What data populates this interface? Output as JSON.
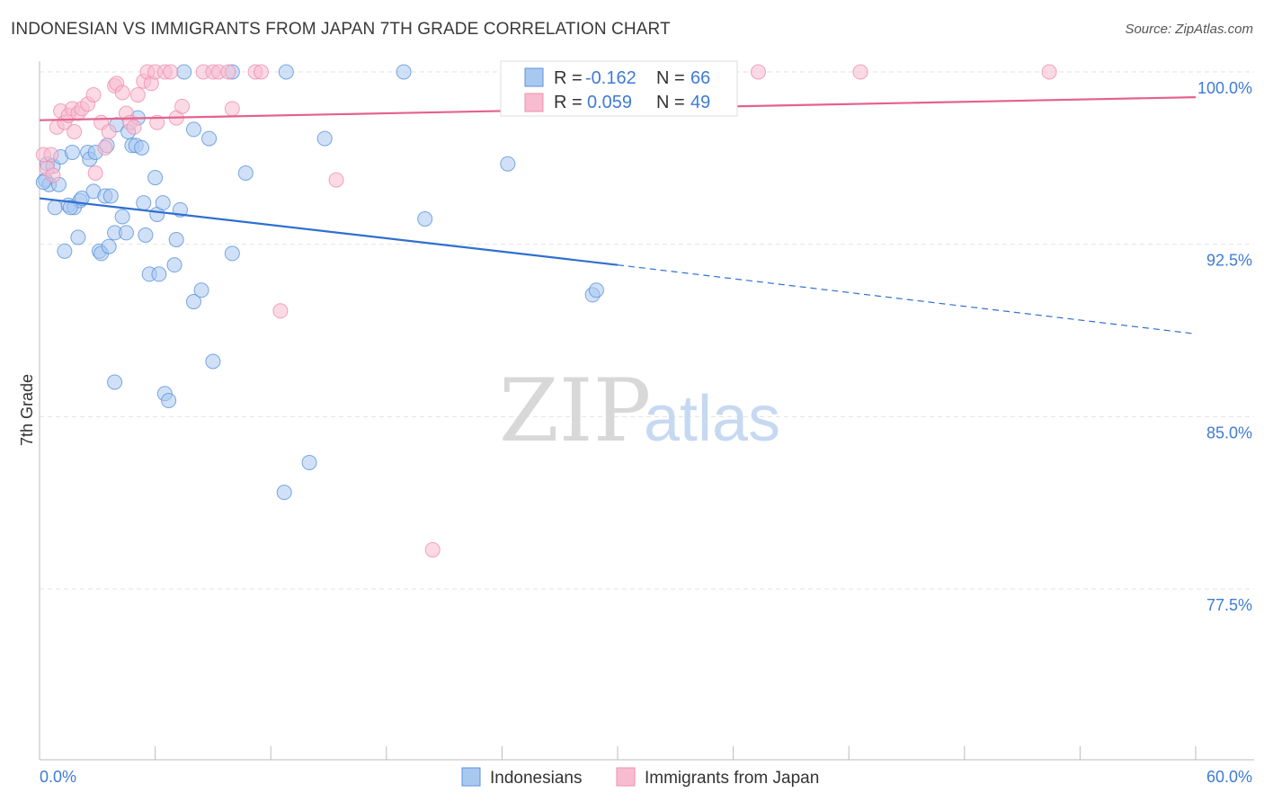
{
  "header": {
    "title": "INDONESIAN VS IMMIGRANTS FROM JAPAN 7TH GRADE CORRELATION CHART",
    "source": "Source: ZipAtlas.com"
  },
  "watermark": {
    "zip": "ZIP",
    "atlas": "atlas"
  },
  "legend": {
    "rows": [
      {
        "r_label": "R =",
        "r_value": "-0.162",
        "n_label": "N =",
        "n_value": "66",
        "color": "#a9c8f0"
      },
      {
        "r_label": "R =",
        "r_value": "0.059",
        "n_label": "N =",
        "n_value": "49",
        "color": "#f8bcd0"
      }
    ]
  },
  "colors": {
    "blue_fill": "#a9c8f0",
    "blue_stroke": "#5b92dc",
    "blue_line": "#2f6fd0",
    "pink_fill": "#f8bcd0",
    "pink_stroke": "#ee8fb0",
    "pink_line": "#e4628f",
    "tick_text": "#3f7bd6",
    "grid": "#e3e3e3"
  },
  "chart_data": {
    "type": "scatter",
    "title": "INDONESIAN VS IMMIGRANTS FROM JAPAN 7TH GRADE CORRELATION CHART",
    "xlabel": "",
    "ylabel": "7th Grade",
    "xlim": [
      0,
      60
    ],
    "ylim": [
      70,
      100.8
    ],
    "x_tick_labels": [
      {
        "value": 0,
        "label": "0.0%"
      },
      {
        "value": 60,
        "label": "60.0%"
      }
    ],
    "y_tick_labels": [
      {
        "value": 100,
        "label": "100.0%"
      },
      {
        "value": 92.5,
        "label": "92.5%"
      },
      {
        "value": 85,
        "label": "85.0%"
      },
      {
        "value": 77.5,
        "label": "77.5%"
      }
    ],
    "grid": true,
    "legend_position": "top-center",
    "series": [
      {
        "name": "Indonesians",
        "color": "#a9c8f0",
        "trend": {
          "x0": 0,
          "y0": 94.5,
          "x1": 30,
          "y1": 91.6,
          "dashed_to_x": 60,
          "dashed_to_y": 88.6
        },
        "points": [
          [
            0.3,
            95.3
          ],
          [
            0.4,
            96.0
          ],
          [
            0.5,
            95.1
          ],
          [
            0.7,
            95.9
          ],
          [
            0.8,
            94.1
          ],
          [
            1.0,
            95.1
          ],
          [
            1.1,
            96.3
          ],
          [
            1.3,
            92.2
          ],
          [
            1.5,
            94.2
          ],
          [
            1.7,
            96.5
          ],
          [
            1.8,
            94.1
          ],
          [
            2.0,
            92.8
          ],
          [
            2.1,
            94.4
          ],
          [
            2.2,
            94.5
          ],
          [
            2.5,
            96.5
          ],
          [
            2.6,
            96.2
          ],
          [
            2.8,
            94.8
          ],
          [
            2.9,
            96.5
          ],
          [
            3.1,
            92.2
          ],
          [
            3.2,
            92.1
          ],
          [
            3.4,
            94.6
          ],
          [
            3.5,
            96.8
          ],
          [
            3.6,
            92.4
          ],
          [
            3.7,
            94.6
          ],
          [
            3.9,
            93.0
          ],
          [
            4.0,
            97.7
          ],
          [
            4.3,
            93.7
          ],
          [
            4.5,
            93.0
          ],
          [
            4.6,
            97.4
          ],
          [
            4.8,
            96.8
          ],
          [
            5.0,
            96.8
          ],
          [
            5.1,
            98.0
          ],
          [
            5.3,
            96.7
          ],
          [
            5.4,
            94.3
          ],
          [
            5.5,
            92.9
          ],
          [
            5.7,
            91.2
          ],
          [
            6.0,
            95.4
          ],
          [
            6.1,
            93.8
          ],
          [
            6.2,
            91.2
          ],
          [
            6.4,
            94.3
          ],
          [
            6.5,
            86.0
          ],
          [
            6.7,
            85.7
          ],
          [
            7.1,
            92.7
          ],
          [
            7.0,
            91.6
          ],
          [
            7.3,
            94.0
          ],
          [
            7.5,
            100.0
          ],
          [
            8.0,
            97.5
          ],
          [
            8.0,
            90.0
          ],
          [
            8.4,
            90.5
          ],
          [
            8.8,
            97.1
          ],
          [
            9.0,
            87.4
          ],
          [
            10.0,
            100.0
          ],
          [
            10.0,
            92.1
          ],
          [
            10.7,
            95.6
          ],
          [
            3.9,
            86.5
          ],
          [
            12.7,
            81.7
          ],
          [
            12.8,
            100.0
          ],
          [
            14.0,
            83.0
          ],
          [
            14.8,
            97.1
          ],
          [
            18.9,
            100.0
          ],
          [
            20.0,
            93.6
          ],
          [
            24.3,
            96.0
          ],
          [
            28.7,
            90.3
          ],
          [
            28.9,
            90.5
          ],
          [
            0.2,
            95.2
          ],
          [
            1.6,
            94.1
          ]
        ]
      },
      {
        "name": "Immigrants from Japan",
        "color": "#f8bcd0",
        "trend": {
          "x0": 0,
          "y0": 97.9,
          "x1": 60,
          "y1": 98.9
        },
        "points": [
          [
            0.2,
            96.4
          ],
          [
            0.4,
            95.8
          ],
          [
            0.6,
            96.4
          ],
          [
            0.7,
            95.5
          ],
          [
            0.9,
            97.6
          ],
          [
            1.1,
            98.3
          ],
          [
            1.3,
            97.8
          ],
          [
            1.5,
            98.1
          ],
          [
            1.7,
            98.4
          ],
          [
            1.8,
            97.4
          ],
          [
            2.0,
            98.2
          ],
          [
            2.2,
            98.4
          ],
          [
            2.5,
            98.6
          ],
          [
            2.8,
            99.0
          ],
          [
            2.9,
            95.6
          ],
          [
            3.2,
            97.8
          ],
          [
            3.4,
            96.7
          ],
          [
            3.6,
            97.4
          ],
          [
            3.9,
            99.4
          ],
          [
            4.0,
            99.5
          ],
          [
            4.3,
            99.1
          ],
          [
            4.5,
            98.2
          ],
          [
            4.7,
            97.8
          ],
          [
            4.9,
            97.6
          ],
          [
            5.1,
            99.0
          ],
          [
            5.4,
            99.6
          ],
          [
            5.6,
            100.0
          ],
          [
            5.8,
            99.5
          ],
          [
            6.0,
            100.0
          ],
          [
            6.1,
            97.8
          ],
          [
            6.5,
            100.0
          ],
          [
            6.8,
            100.0
          ],
          [
            7.1,
            98.0
          ],
          [
            7.4,
            98.5
          ],
          [
            8.5,
            100.0
          ],
          [
            9.0,
            100.0
          ],
          [
            9.3,
            100.0
          ],
          [
            9.8,
            100.0
          ],
          [
            10.0,
            98.4
          ],
          [
            11.2,
            100.0
          ],
          [
            11.5,
            100.0
          ],
          [
            12.5,
            89.6
          ],
          [
            15.4,
            95.3
          ],
          [
            20.4,
            79.2
          ],
          [
            28.3,
            100.0
          ],
          [
            35.5,
            100.0
          ],
          [
            37.3,
            100.0
          ],
          [
            42.6,
            100.0
          ],
          [
            52.4,
            100.0
          ]
        ]
      }
    ]
  },
  "bottom_legend": {
    "items": [
      {
        "label": "Indonesians",
        "color": "#a9c8f0"
      },
      {
        "label": "Immigrants from Japan",
        "color": "#f8bcd0"
      }
    ]
  }
}
